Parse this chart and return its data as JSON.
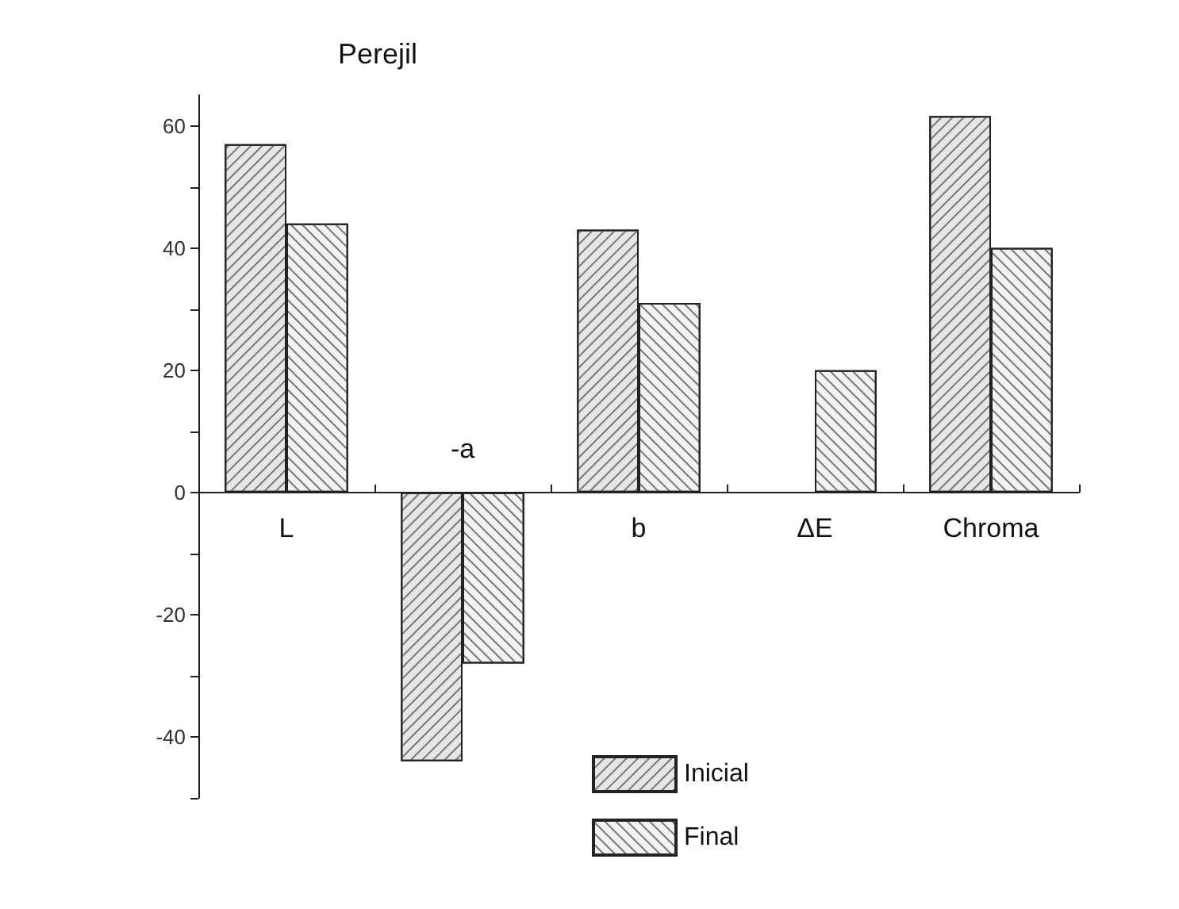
{
  "chart_data": {
    "type": "bar",
    "title": "Perejil",
    "categories": [
      "L",
      "-a",
      "b",
      "ΔE",
      "Chroma"
    ],
    "series": [
      {
        "name": "Inicial",
        "color": "#e6e6e6",
        "values": [
          57,
          -44,
          43,
          null,
          61.6
        ]
      },
      {
        "name": "Final",
        "color": "#f2f2f2",
        "values": [
          44,
          -28,
          31,
          20,
          40
        ]
      }
    ],
    "ylim": [
      -50,
      65
    ],
    "yticks": [
      {
        "value": -50,
        "label": null
      },
      -40,
      {
        "value": -30,
        "label": null
      },
      -20,
      {
        "value": -10,
        "label": null
      },
      0,
      {
        "value": 10,
        "label": null
      },
      20,
      {
        "value": 30,
        "label": null
      },
      40,
      {
        "value": 50,
        "label": null
      },
      60
    ],
    "grid": false,
    "legend": "bottom"
  }
}
